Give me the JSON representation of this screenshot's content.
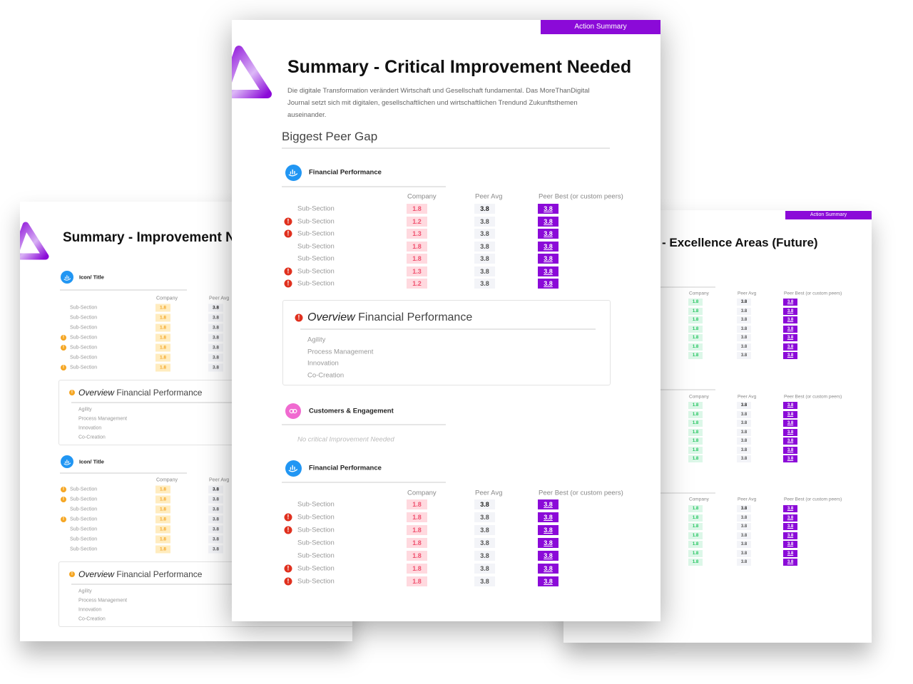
{
  "colors": {
    "brand_purple": "#8b0ad8",
    "warning_red": "#e0301e",
    "warning_orange": "#f5a623",
    "company_red_bg": "#ffd9df",
    "company_red_text": "#f0506e",
    "company_orange_bg": "#ffecbf",
    "company_orange_text": "#f5a623",
    "company_green_bg": "#dcf7e8",
    "company_green_text": "#22c55e",
    "peer_avg_bg": "#f3f4f8",
    "peer_best_bg": "#8b0ad8",
    "icon_blue": "#2196f3",
    "icon_pink": "#f06ad0"
  },
  "main_page": {
    "tag": "Action Summary",
    "title": "Summary - Critical Improvement Needed",
    "description": "Die digitale Transformation verändert Wirtschaft und Gesellschaft fundamental. Das MoreThanDigital Journal setzt sich mit digitalen, gesellschaftlichen und wirtschaftlichen Trendund Zukunftsthemen auseinander.",
    "subtitle": "Biggest Peer Gap",
    "sections": [
      {
        "title": "Financial Performance",
        "icon": "chart-hand-icon",
        "columns": [
          "Company",
          "Peer Avg",
          "Peer Best (or custom peers)"
        ],
        "rows": [
          {
            "label": "Sub-Section",
            "warning": false,
            "company": "1.8",
            "peer_avg": "3.8",
            "peer_best": "3.8"
          },
          {
            "label": "Sub-Section",
            "warning": true,
            "company": "1.2",
            "peer_avg": "3.8",
            "peer_best": "3.8"
          },
          {
            "label": "Sub-Section",
            "warning": true,
            "company": "1.3",
            "peer_avg": "3.8",
            "peer_best": "3.8"
          },
          {
            "label": "Sub-Section",
            "warning": false,
            "company": "1.8",
            "peer_avg": "3.8",
            "peer_best": "3.8"
          },
          {
            "label": "Sub-Section",
            "warning": false,
            "company": "1.8",
            "peer_avg": "3.8",
            "peer_best": "3.8"
          },
          {
            "label": "Sub-Section",
            "warning": true,
            "company": "1.3",
            "peer_avg": "3.8",
            "peer_best": "3.8"
          },
          {
            "label": "Sub-Section",
            "warning": true,
            "company": "1.2",
            "peer_avg": "3.8",
            "peer_best": "3.8"
          }
        ],
        "overview": {
          "title_italic": "Overview",
          "title": "Financial Performance",
          "items": [
            "Agility",
            "Process Management",
            "Innovation",
            "Co-Creation"
          ]
        }
      },
      {
        "title": "Customers & Engagement",
        "icon": "link-icon",
        "empty_text": "No critical Improvement Needed"
      },
      {
        "title": "Financial Performance",
        "icon": "chart-hand-icon",
        "columns": [
          "Company",
          "Peer Avg",
          "Peer Best (or custom peers)"
        ],
        "rows": [
          {
            "label": "Sub-Section",
            "warning": false,
            "company": "1.8",
            "peer_avg": "3.8",
            "peer_best": "3.8"
          },
          {
            "label": "Sub-Section",
            "warning": true,
            "company": "1.8",
            "peer_avg": "3.8",
            "peer_best": "3.8"
          },
          {
            "label": "Sub-Section",
            "warning": true,
            "company": "1.8",
            "peer_avg": "3.8",
            "peer_best": "3.8"
          },
          {
            "label": "Sub-Section",
            "warning": false,
            "company": "1.8",
            "peer_avg": "3.8",
            "peer_best": "3.8"
          },
          {
            "label": "Sub-Section",
            "warning": false,
            "company": "1.8",
            "peer_avg": "3.8",
            "peer_best": "3.8"
          },
          {
            "label": "Sub-Section",
            "warning": true,
            "company": "1.8",
            "peer_avg": "3.8",
            "peer_best": "3.8"
          },
          {
            "label": "Sub-Section",
            "warning": true,
            "company": "1.8",
            "peer_avg": "3.8",
            "peer_best": "3.8"
          }
        ]
      }
    ]
  },
  "left_page": {
    "title": "Summary - Improvement N",
    "sections": [
      {
        "title": "Icon/ Title",
        "icon": "chart-hand-icon",
        "columns": [
          "Company",
          "Peer Avg"
        ],
        "rows": [
          {
            "label": "Sub-Section",
            "warning": false,
            "company": "1.8",
            "peer_avg": "3.8"
          },
          {
            "label": "Sub-Section",
            "warning": false,
            "company": "1.8",
            "peer_avg": "3.8"
          },
          {
            "label": "Sub-Section",
            "warning": false,
            "company": "1.8",
            "peer_avg": "3.8"
          },
          {
            "label": "Sub-Section",
            "warning": true,
            "company": "1.8",
            "peer_avg": "3.8"
          },
          {
            "label": "Sub-Section",
            "warning": true,
            "company": "1.8",
            "peer_avg": "3.8"
          },
          {
            "label": "Sub-Section",
            "warning": false,
            "company": "1.8",
            "peer_avg": "3.8"
          },
          {
            "label": "Sub-Section",
            "warning": true,
            "company": "1.8",
            "peer_avg": "3.8"
          }
        ],
        "overview": {
          "title_italic": "Overview",
          "title": "Financial Performance",
          "items": [
            "Agility",
            "Process Management",
            "Innovation",
            "Co-Creation"
          ]
        }
      },
      {
        "title": "Icon/ Title",
        "icon": "chart-hand-icon",
        "columns": [
          "Company",
          "Peer Avg"
        ],
        "rows": [
          {
            "label": "Sub-Section",
            "warning": true,
            "company": "1.8",
            "peer_avg": "3.8"
          },
          {
            "label": "Sub-Section",
            "warning": true,
            "company": "1.8",
            "peer_avg": "3.8"
          },
          {
            "label": "Sub-Section",
            "warning": false,
            "company": "1.8",
            "peer_avg": "3.8"
          },
          {
            "label": "Sub-Section",
            "warning": true,
            "company": "1.8",
            "peer_avg": "3.8"
          },
          {
            "label": "Sub-Section",
            "warning": false,
            "company": "1.8",
            "peer_avg": "3.8"
          },
          {
            "label": "Sub-Section",
            "warning": false,
            "company": "1.8",
            "peer_avg": "3.8"
          },
          {
            "label": "Sub-Section",
            "warning": false,
            "company": "1.8",
            "peer_avg": "3.8"
          }
        ],
        "overview": {
          "title_italic": "Overview",
          "title": "Financial Performance",
          "items": [
            "Agility",
            "Process Management",
            "Innovation",
            "Co-Creation"
          ]
        }
      }
    ]
  },
  "right_page": {
    "tag": "Action Summary",
    "title": "- Excellence Areas (Future)",
    "groups": [
      {
        "columns": [
          "Company",
          "Peer Avg",
          "Peer Best (or custom peers)"
        ],
        "rows": [
          {
            "company": "1.8",
            "peer_avg": "3.8",
            "peer_best": "3.8"
          },
          {
            "company": "1.8",
            "peer_avg": "3.8",
            "peer_best": "3.8"
          },
          {
            "company": "1.8",
            "peer_avg": "3.8",
            "peer_best": "3.8"
          },
          {
            "company": "1.8",
            "peer_avg": "3.8",
            "peer_best": "3.8"
          },
          {
            "company": "1.8",
            "peer_avg": "3.8",
            "peer_best": "3.8"
          },
          {
            "company": "1.8",
            "peer_avg": "3.8",
            "peer_best": "3.8"
          },
          {
            "company": "1.8",
            "peer_avg": "3.8",
            "peer_best": "3.8"
          }
        ]
      },
      {
        "columns": [
          "Company",
          "Peer Avg",
          "Peer Best (or custom peers)"
        ],
        "rows": [
          {
            "company": "1.8",
            "peer_avg": "3.8",
            "peer_best": "3.8"
          },
          {
            "company": "1.8",
            "peer_avg": "3.8",
            "peer_best": "3.8"
          },
          {
            "company": "1.8",
            "peer_avg": "3.8",
            "peer_best": "3.8"
          },
          {
            "company": "1.8",
            "peer_avg": "3.8",
            "peer_best": "3.8"
          },
          {
            "company": "1.8",
            "peer_avg": "3.8",
            "peer_best": "3.8"
          },
          {
            "company": "1.8",
            "peer_avg": "3.8",
            "peer_best": "3.8"
          },
          {
            "company": "1.8",
            "peer_avg": "3.8",
            "peer_best": "3.8"
          }
        ]
      },
      {
        "columns": [
          "Company",
          "Peer Avg",
          "Peer Best (or custom peers)"
        ],
        "rows": [
          {
            "company": "1.8",
            "peer_avg": "3.8",
            "peer_best": "3.8"
          },
          {
            "company": "1.8",
            "peer_avg": "3.8",
            "peer_best": "3.8"
          },
          {
            "company": "1.8",
            "peer_avg": "3.8",
            "peer_best": "3.8"
          },
          {
            "company": "1.8",
            "peer_avg": "3.8",
            "peer_best": "3.8"
          },
          {
            "company": "1.8",
            "peer_avg": "3.8",
            "peer_best": "3.8"
          },
          {
            "company": "1.8",
            "peer_avg": "3.8",
            "peer_best": "3.8"
          },
          {
            "company": "1.8",
            "peer_avg": "3.8",
            "peer_best": "3.8"
          }
        ]
      }
    ]
  }
}
